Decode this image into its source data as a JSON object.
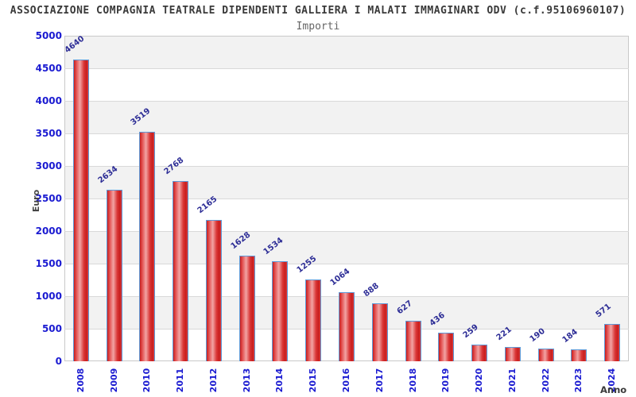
{
  "header": {
    "title": "ASSOCIAZIONE COMPAGNIA TEATRALE DIPENDENTI GALLIERA I MALATI IMMAGINARI ODV (c.f.95106960107)",
    "subtitle": "Importi"
  },
  "chart_data": {
    "type": "bar",
    "title": "ASSOCIAZIONE COMPAGNIA TEATRALE DIPENDENTI GALLIERA I MALATI IMMAGINARI ODV (c.f.95106960107)",
    "subtitle": "Importi",
    "categories": [
      "2008",
      "2009",
      "2010",
      "2011",
      "2012",
      "2013",
      "2014",
      "2015",
      "2016",
      "2017",
      "2018",
      "2019",
      "2020",
      "2021",
      "2022",
      "2023",
      "2024"
    ],
    "values": [
      4640,
      2634,
      3519,
      2768,
      2165,
      1628,
      1534,
      1255,
      1064,
      888,
      627,
      436,
      259,
      221,
      190,
      184,
      571
    ],
    "xlabel": "Anno",
    "ylabel": "Euro",
    "ylim": [
      0,
      5000
    ],
    "ytick_step": 500,
    "grid": true,
    "legend": "none",
    "bar_labels_rotated": true,
    "colors": {
      "bar_fill_edge": "#c81e1e",
      "bar_fill_light": "#f2a4a4",
      "bar_border": "#5e9ad8",
      "tick_label": "#1a1ad1",
      "value_label": "#2d2d96",
      "band_gray": "#f2f2f2",
      "band_white": "#ffffff",
      "title_color": "#3a3a3a",
      "subtitle_color": "#666666"
    }
  }
}
